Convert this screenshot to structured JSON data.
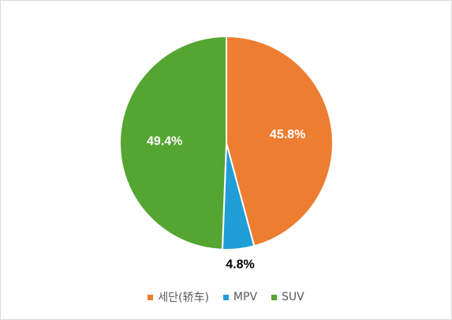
{
  "chart_data": {
    "type": "pie",
    "categories": [
      "세단(轿车)",
      "MPV",
      "SUV"
    ],
    "values": [
      45.8,
      4.8,
      49.4
    ],
    "labels": [
      "45.8%",
      "4.8%",
      "49.4%"
    ],
    "colors": [
      "#ed7d31",
      "#1f9ed8",
      "#55a532"
    ],
    "label_colors": [
      "#ffffff",
      "#000000",
      "#ffffff"
    ],
    "legend_position": "bottom",
    "start": "12 o'clock, clockwise"
  }
}
